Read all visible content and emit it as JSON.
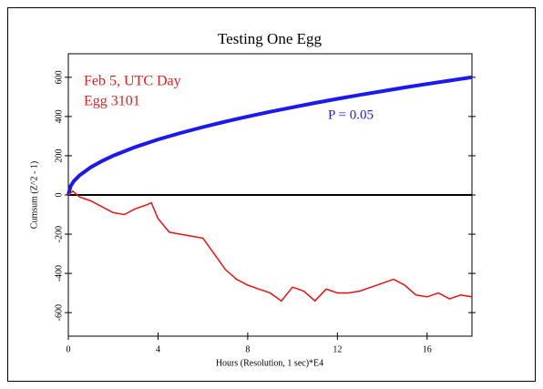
{
  "chart_data": {
    "type": "line",
    "title": "Testing One Egg",
    "xlabel": "Hours (Resolution, 1 sec)*E4",
    "ylabel": "Cumsum (Z^2 - 1)",
    "annotations": [
      {
        "text": "Feb 5, UTC Day",
        "color": "#dd2222"
      },
      {
        "text": "Egg 3101",
        "color": "#dd2222"
      },
      {
        "text": "P = 0.05",
        "color": "#2222dd"
      }
    ],
    "xlim": [
      0,
      18
    ],
    "xticks": [
      0,
      4,
      8,
      12,
      16
    ],
    "ylim": [
      -720,
      720
    ],
    "yticks": [
      600,
      400,
      200,
      0,
      -200,
      -400,
      -600
    ],
    "series": [
      {
        "name": "P = 0.05",
        "color": "#1a1aee",
        "x": [
          0,
          0.1,
          0.25,
          0.5,
          1,
          1.5,
          2,
          3,
          4,
          5,
          6,
          7,
          8,
          9,
          10,
          11,
          12,
          13,
          14,
          15,
          16,
          17,
          18
        ],
        "values": [
          0,
          45,
          71,
          100,
          141,
          173,
          200,
          245,
          283,
          316,
          346,
          374,
          400,
          424,
          447,
          469,
          490,
          510,
          529,
          548,
          566,
          583,
          600
        ]
      },
      {
        "name": "Egg 3101",
        "color": "#ee1111",
        "x": [
          0,
          0.2,
          0.5,
          1,
          1.5,
          2,
          2.5,
          3,
          3.5,
          3.7,
          4,
          4.5,
          5,
          5.5,
          6,
          6.5,
          7,
          7.5,
          8,
          8.5,
          9,
          9.5,
          10,
          10.5,
          11,
          11.5,
          12,
          12.5,
          13,
          13.5,
          14,
          14.5,
          15,
          15.5,
          16,
          16.5,
          17,
          17.5,
          18
        ],
        "values": [
          0,
          20,
          -10,
          -30,
          -60,
          -90,
          -100,
          -70,
          -50,
          -40,
          -120,
          -190,
          -200,
          -210,
          -220,
          -300,
          -380,
          -430,
          -460,
          -480,
          -500,
          -540,
          -470,
          -490,
          -540,
          -480,
          -500,
          -500,
          -490,
          -470,
          -450,
          -430,
          -460,
          -510,
          -520,
          -500,
          -530,
          -510,
          -520
        ]
      }
    ]
  }
}
